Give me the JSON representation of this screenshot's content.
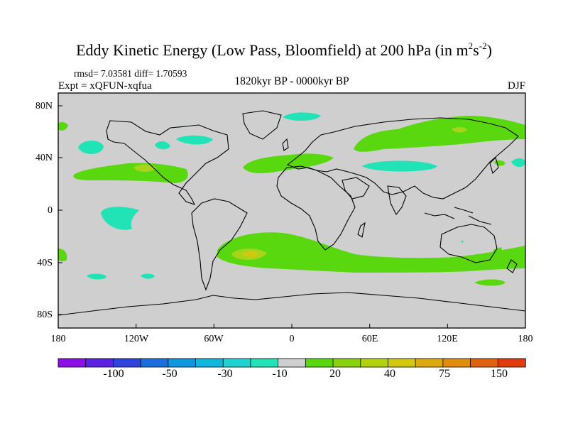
{
  "header": {
    "title_main": "Eddy Kinetic Energy (Low Pass, Bloomfield) at 200 hPa (in m",
    "title_sup1": "2",
    "title_mid": "s",
    "title_sup2": "-2",
    "title_end": ")",
    "stats": "rmsd= 7.03581 diff= 1.70593",
    "experiment": "Expt = xQFUN-xqfua",
    "period": "1820kyr BP - 0000kyr BP",
    "season": "DJF"
  },
  "axes": {
    "lat_labels": [
      "80N",
      "40N",
      "0",
      "40S",
      "80S"
    ],
    "lon_labels": [
      "180",
      "120W",
      "60W",
      "0",
      "60E",
      "120E",
      "180"
    ]
  },
  "colorbar": {
    "labels": [
      "-100",
      "-50",
      "-30",
      "-10",
      "20",
      "40",
      "75",
      "150"
    ],
    "colors": [
      "#8b10e6",
      "#5a22e0",
      "#2f44dc",
      "#1a6fdc",
      "#0f96dd",
      "#12b5dc",
      "#20d2d2",
      "#22e3b5",
      "#cfcfcf",
      "#5ad80f",
      "#8ad20f",
      "#b0d20f",
      "#d2c80f",
      "#dcaa0f",
      "#e08c0f",
      "#e0620f",
      "#e03a0f"
    ]
  },
  "colors": {
    "background": "#cfcfcf",
    "positive_low": "#5ad80f",
    "positive_mid": "#a7d41a",
    "positive_high": "#d2c80f",
    "negative_low": "#22e3b5"
  }
}
